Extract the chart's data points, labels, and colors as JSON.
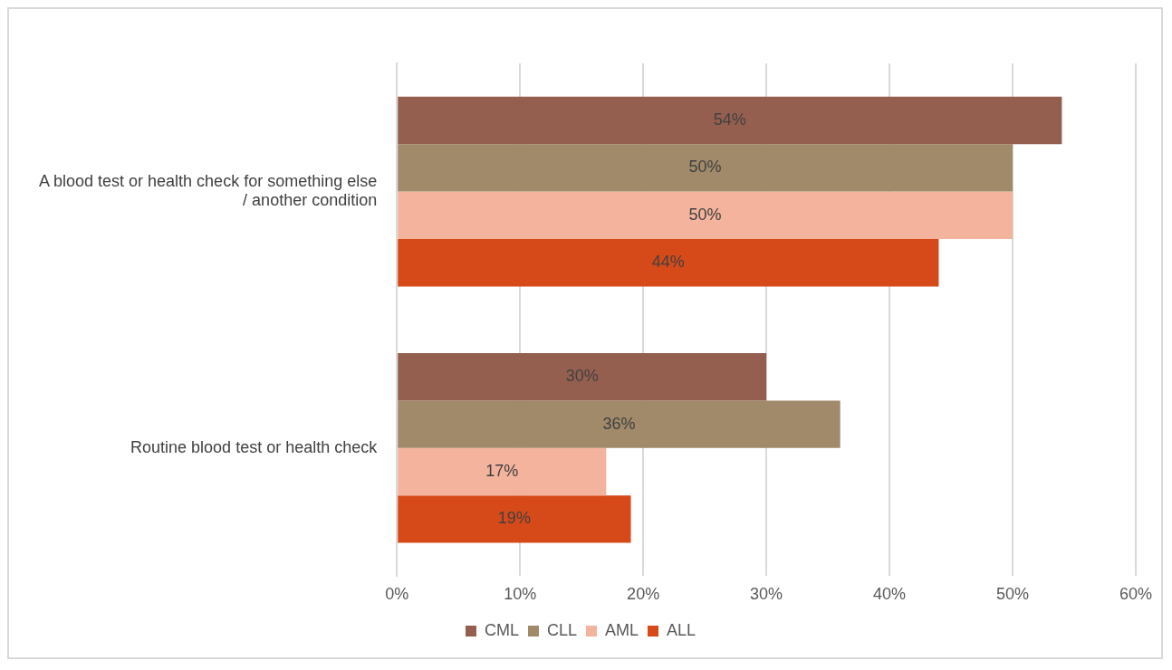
{
  "chart_data": {
    "type": "bar",
    "orientation": "horizontal",
    "categories": [
      "A blood test or health check for something else / another condition",
      "Routine blood test or health check"
    ],
    "series": [
      {
        "name": "CML",
        "color": "#955f4f",
        "values": [
          54,
          30
        ],
        "value_labels": [
          "54%",
          "30%"
        ]
      },
      {
        "name": "CLL",
        "color": "#a08a6a",
        "values": [
          50,
          36
        ],
        "value_labels": [
          "50%",
          "36%"
        ]
      },
      {
        "name": "AML",
        "color": "#f4b39c",
        "values": [
          50,
          17
        ],
        "value_labels": [
          "50%",
          "17%"
        ]
      },
      {
        "name": "ALL",
        "color": "#d64a1a",
        "values": [
          44,
          19
        ],
        "value_labels": [
          "44%",
          "19%"
        ]
      }
    ],
    "xlim": [
      0,
      60
    ],
    "xticks": [
      {
        "value": 0,
        "label": "0%"
      },
      {
        "value": 10,
        "label": "10%"
      },
      {
        "value": 20,
        "label": "20%"
      },
      {
        "value": 30,
        "label": "30%"
      },
      {
        "value": 40,
        "label": "40%"
      },
      {
        "value": 50,
        "label": "50%"
      },
      {
        "value": 60,
        "label": "60%"
      }
    ],
    "grid": "x",
    "legend": "bottom"
  }
}
